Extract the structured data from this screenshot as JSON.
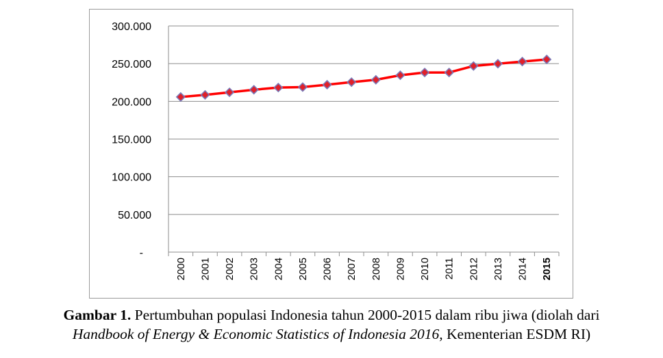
{
  "chart_data": {
    "type": "line",
    "categories": [
      "2000",
      "2001",
      "2002",
      "2003",
      "2004",
      "2005",
      "2006",
      "2007",
      "2008",
      "2009",
      "2010",
      "2011",
      "2012",
      "2013",
      "2014",
      "2015"
    ],
    "series": [
      {
        "values": [
          205800,
          208600,
          212000,
          215400,
          218300,
          218900,
          222100,
          225500,
          228600,
          234600,
          238300,
          238300,
          246900,
          249900,
          252800,
          255600
        ]
      }
    ],
    "y_ticks": [
      {
        "value": 300000,
        "label": "300.000"
      },
      {
        "value": 250000,
        "label": "250.000"
      },
      {
        "value": 200000,
        "label": "200.000"
      },
      {
        "value": 150000,
        "label": "150.000"
      },
      {
        "value": 100000,
        "label": "100.000"
      },
      {
        "value": 50000,
        "label": "50.000"
      },
      {
        "value": 0,
        "label": "-"
      }
    ],
    "ylim": [
      0,
      300000
    ],
    "grid": true,
    "line_color": "#ff0000",
    "marker_color": "#e0202a",
    "marker_edge_color": "#7a7ab8"
  },
  "caption": {
    "label": "Gambar 1.",
    "text1": " Pertumbuhan populasi Indonesia tahun 2000-2015 dalam ribu jiwa (diolah dari",
    "source_italic": "Handbook of Energy & Economic Statistics of Indonesia 2016,",
    "source_rest": " Kementerian ESDM RI)"
  }
}
